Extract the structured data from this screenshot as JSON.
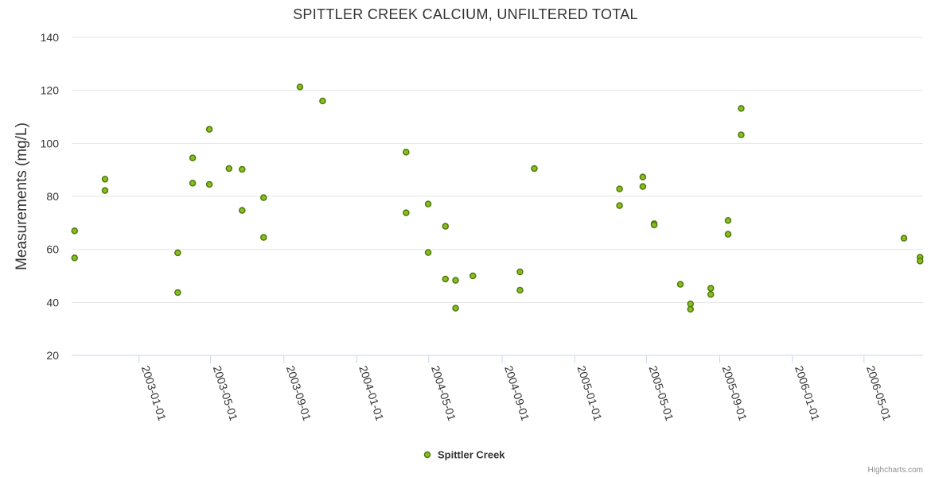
{
  "chart_data": {
    "type": "scatter",
    "title": "SPITTLER CREEK CALCIUM, UNFILTERED TOTAL",
    "ylabel": "Measurements (mg/L)",
    "xlabel": "",
    "ylim": [
      20,
      140
    ],
    "yticks": [
      20,
      40,
      60,
      80,
      100,
      120,
      140
    ],
    "xlim": [
      "2002-09-10",
      "2006-08-08"
    ],
    "xticks": [
      "2003-01-01",
      "2003-05-01",
      "2003-09-01",
      "2004-01-01",
      "2004-05-01",
      "2004-09-01",
      "2005-01-01",
      "2005-05-01",
      "2005-09-01",
      "2006-01-01",
      "2006-05-01"
    ],
    "grid": true,
    "legend_position": "bottom-center",
    "colors": {
      "marker_fill": "#8bbc21",
      "marker_stroke": "#4d7a0a",
      "grid": "#e6e6e6",
      "axis_line": "#ccd6eb"
    },
    "series": [
      {
        "name": "Spittler Creek",
        "points": [
          {
            "x": "2002-09-15",
            "y": 67
          },
          {
            "x": "2002-09-15",
            "y": 56.8
          },
          {
            "x": "2002-11-05",
            "y": 86.5
          },
          {
            "x": "2002-11-05",
            "y": 82.2
          },
          {
            "x": "2003-03-07",
            "y": 58.7
          },
          {
            "x": "2003-03-07",
            "y": 43.7
          },
          {
            "x": "2003-04-01",
            "y": 94.5
          },
          {
            "x": "2003-04-01",
            "y": 85
          },
          {
            "x": "2003-04-29",
            "y": 105.3
          },
          {
            "x": "2003-04-29",
            "y": 84.5
          },
          {
            "x": "2003-06-01",
            "y": 90.5
          },
          {
            "x": "2003-06-23",
            "y": 90.2
          },
          {
            "x": "2003-06-23",
            "y": 74.7
          },
          {
            "x": "2003-07-29",
            "y": 79.5
          },
          {
            "x": "2003-07-29",
            "y": 64.5
          },
          {
            "x": "2003-09-28",
            "y": 121.3
          },
          {
            "x": "2003-11-05",
            "y": 116
          },
          {
            "x": "2004-03-24",
            "y": 96.7
          },
          {
            "x": "2004-03-24",
            "y": 73.8
          },
          {
            "x": "2004-04-30",
            "y": 77.1
          },
          {
            "x": "2004-04-30",
            "y": 58.8
          },
          {
            "x": "2004-05-29",
            "y": 68.7
          },
          {
            "x": "2004-05-29",
            "y": 48.8
          },
          {
            "x": "2004-06-15",
            "y": 48.3
          },
          {
            "x": "2004-06-15",
            "y": 37.8
          },
          {
            "x": "2004-07-14",
            "y": 50
          },
          {
            "x": "2004-10-01",
            "y": 51.5
          },
          {
            "x": "2004-10-01",
            "y": 44.6
          },
          {
            "x": "2004-10-25",
            "y": 90.5
          },
          {
            "x": "2005-03-17",
            "y": 82.8
          },
          {
            "x": "2005-03-17",
            "y": 76.5
          },
          {
            "x": "2005-04-25",
            "y": 87.3
          },
          {
            "x": "2005-04-25",
            "y": 83.7
          },
          {
            "x": "2005-05-14",
            "y": 69.7
          },
          {
            "x": "2005-05-14",
            "y": 69.2
          },
          {
            "x": "2005-06-27",
            "y": 46.8
          },
          {
            "x": "2005-07-14",
            "y": 39.4
          },
          {
            "x": "2005-07-14",
            "y": 37.4
          },
          {
            "x": "2005-08-17",
            "y": 45.3
          },
          {
            "x": "2005-08-17",
            "y": 43
          },
          {
            "x": "2005-09-15",
            "y": 70.9
          },
          {
            "x": "2005-09-15",
            "y": 65.7
          },
          {
            "x": "2005-10-07",
            "y": 113.2
          },
          {
            "x": "2005-10-07",
            "y": 103.2
          },
          {
            "x": "2006-07-07",
            "y": 64.2
          },
          {
            "x": "2006-08-03",
            "y": 57
          },
          {
            "x": "2006-08-03",
            "y": 55.6
          }
        ]
      }
    ]
  },
  "legend": {
    "series_name": "Spittler Creek"
  },
  "credits": "Highcharts.com"
}
